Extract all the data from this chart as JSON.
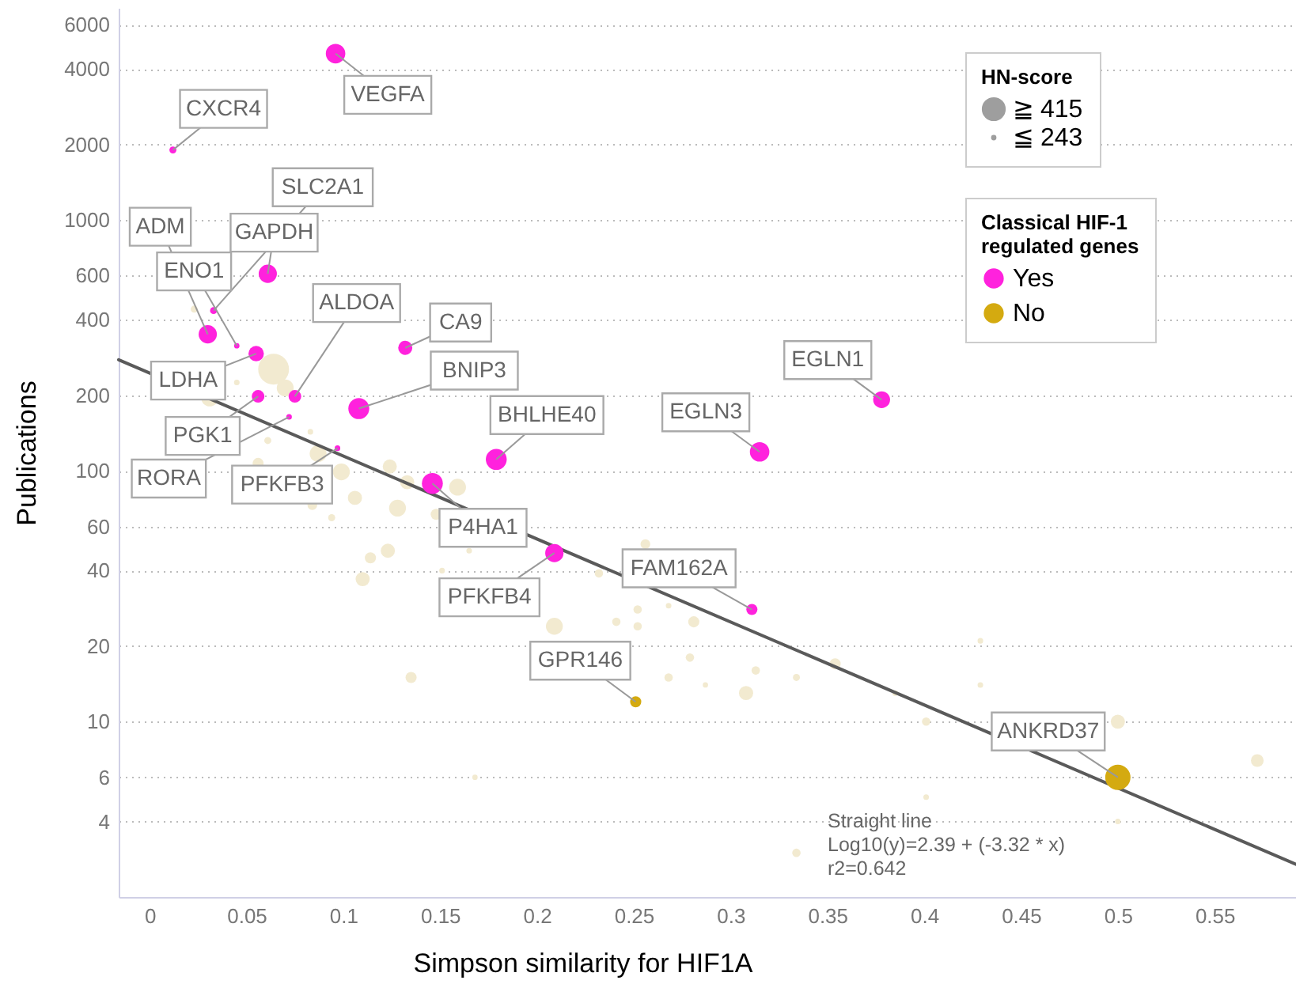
{
  "chart_data": {
    "type": "bubble",
    "xlabel": "Simpson similarity for HIF1A",
    "ylabel": "Publications",
    "legend_title": "Classical HIF-1 regulated genes",
    "xlim": [
      -0.016,
      0.592
    ],
    "xticks": [
      0,
      0.05,
      0.1,
      0.15,
      0.2,
      0.25,
      0.3,
      0.35,
      0.4,
      0.45,
      0.5,
      0.55
    ],
    "ylim": [
      2,
      7000
    ],
    "yticks": [
      4,
      6,
      10,
      20,
      40,
      60,
      100,
      200,
      400,
      600,
      1000,
      2000,
      4000,
      6000
    ],
    "log": true,
    "grid": "y",
    "legend": "top right",
    "size_legend": [
      {
        "value": 0.6,
        "label": "≧ 415"
      },
      {
        "value": 0.03,
        "label": "≦ 243"
      }
    ],
    "series": [
      {
        "color": "#f2ead0",
        "x": [
          0.023,
          0.064,
          0.07,
          0.031,
          0.045,
          0.083,
          0.087,
          0.099,
          0.124,
          0.133,
          0.159,
          0.061,
          0.056,
          0.084,
          0.094,
          0.106,
          0.128,
          0.148,
          0.114,
          0.123,
          0.11,
          0.165,
          0.151,
          0.209,
          0.135,
          0.256,
          0.232,
          0.252,
          0.252,
          0.241,
          0.268,
          0.281,
          0.279,
          0.268,
          0.287,
          0.308,
          0.313,
          0.334,
          0.354,
          0.168,
          0.334,
          0.429,
          0.429,
          0.385,
          0.401,
          0.5,
          0.572,
          0.401,
          0.5
        ],
        "values": [
          441,
          254,
          214,
          195,
          225,
          143,
          117,
          99,
          104,
          90,
          86,
          132,
          107,
          73,
          65,
          78,
          71,
          67,
          45,
          48,
          37,
          48,
          40,
          24,
          15,
          51,
          39,
          28,
          24,
          25,
          29,
          25,
          18,
          15,
          14,
          13,
          16,
          15,
          17,
          6,
          3,
          21,
          14,
          13,
          10,
          10,
          7,
          5,
          4
        ],
        "sizes": [
          0.052,
          1,
          0.3,
          0.3,
          0.033,
          0.033,
          0.3,
          0.3,
          0.21,
          0.21,
          0.3,
          0.052,
          0.13,
          0.1,
          0.052,
          0.21,
          0.3,
          0.13,
          0.13,
          0.21,
          0.21,
          0.033,
          0.033,
          0.3,
          0.13,
          0.1,
          0.074,
          0.074,
          0.074,
          0.074,
          0.033,
          0.13,
          0.074,
          0.074,
          0.03,
          0.21,
          0.074,
          0.052,
          0.13,
          0.03,
          0.074,
          0.033,
          0.033,
          0.033,
          0.074,
          0.21,
          0.17,
          0.033,
          0.033
        ]
      },
      {
        "type": "line",
        "color": "#5a5a5a",
        "x": [
          -0.016,
          0.592
        ],
        "values": [
          277,
          2.7
        ]
      },
      {
        "name": "Yes",
        "color": "#ff22dd",
        "x": [
          0.096,
          0.012,
          0.033,
          0.03,
          0.061,
          0.045,
          0.055,
          0.075,
          0.132,
          0.108,
          0.056,
          0.072,
          0.097,
          0.179,
          0.146,
          0.209,
          0.311,
          0.315,
          0.378
        ],
        "values": [
          4600,
          1900,
          435,
          350,
          610,
          315,
          293,
          198,
          309,
          177,
          198,
          164,
          123,
          111,
          89,
          47,
          28,
          119,
          192
        ],
        "sizes": [
          0.4,
          0.052,
          0.052,
          0.35,
          0.35,
          0.03,
          0.25,
          0.17,
          0.21,
          0.46,
          0.17,
          0.033,
          0.033,
          0.46,
          0.46,
          0.35,
          0.13,
          0.4,
          0.3
        ]
      },
      {
        "name": "No",
        "color": "#d4aa10",
        "x": [
          0.251,
          0.5
        ],
        "values": [
          12,
          6
        ],
        "sizes": [
          0.13,
          0.67
        ]
      }
    ],
    "annotations": [
      {
        "text": "VEGFA",
        "x": 0.096,
        "y": 4600
      },
      {
        "text": "CXCR4",
        "x": 0.012,
        "y": 1900
      },
      {
        "text": "SLC2A1",
        "x": 0.033,
        "y": 435
      },
      {
        "text": "ADM",
        "x": 0.03,
        "y": 350
      },
      {
        "text": "GAPDH",
        "x": 0.061,
        "y": 610
      },
      {
        "text": "ENO1",
        "x": 0.045,
        "y": 315
      },
      {
        "text": "LDHA",
        "x": 0.055,
        "y": 293
      },
      {
        "text": "ALDOA",
        "x": 0.075,
        "y": 198
      },
      {
        "text": "CA9",
        "x": 0.132,
        "y": 309
      },
      {
        "text": "BNIP3",
        "x": 0.108,
        "y": 177
      },
      {
        "text": "PGK1",
        "x": 0.056,
        "y": 198
      },
      {
        "text": "RORA",
        "x": 0.072,
        "y": 164
      },
      {
        "text": "PFKFB3",
        "x": 0.097,
        "y": 123
      },
      {
        "text": "BHLHE40",
        "x": 0.179,
        "y": 111
      },
      {
        "text": "P4HA1",
        "x": 0.146,
        "y": 89
      },
      {
        "text": "PFKFB4",
        "x": 0.209,
        "y": 47
      },
      {
        "text": "FAM162A",
        "x": 0.311,
        "y": 28
      },
      {
        "text": "EGLN3",
        "x": 0.315,
        "y": 119
      },
      {
        "text": "EGLN1",
        "x": 0.378,
        "y": 192
      },
      {
        "text": "GPR146",
        "x": 0.251,
        "y": 12
      },
      {
        "text": "ANKRD37",
        "x": 0.5,
        "y": 6
      },
      "HN-score",
      "Straight line\nLog10(y)=2.39 + (-3.32 * x)\nr2=0.642"
    ]
  }
}
